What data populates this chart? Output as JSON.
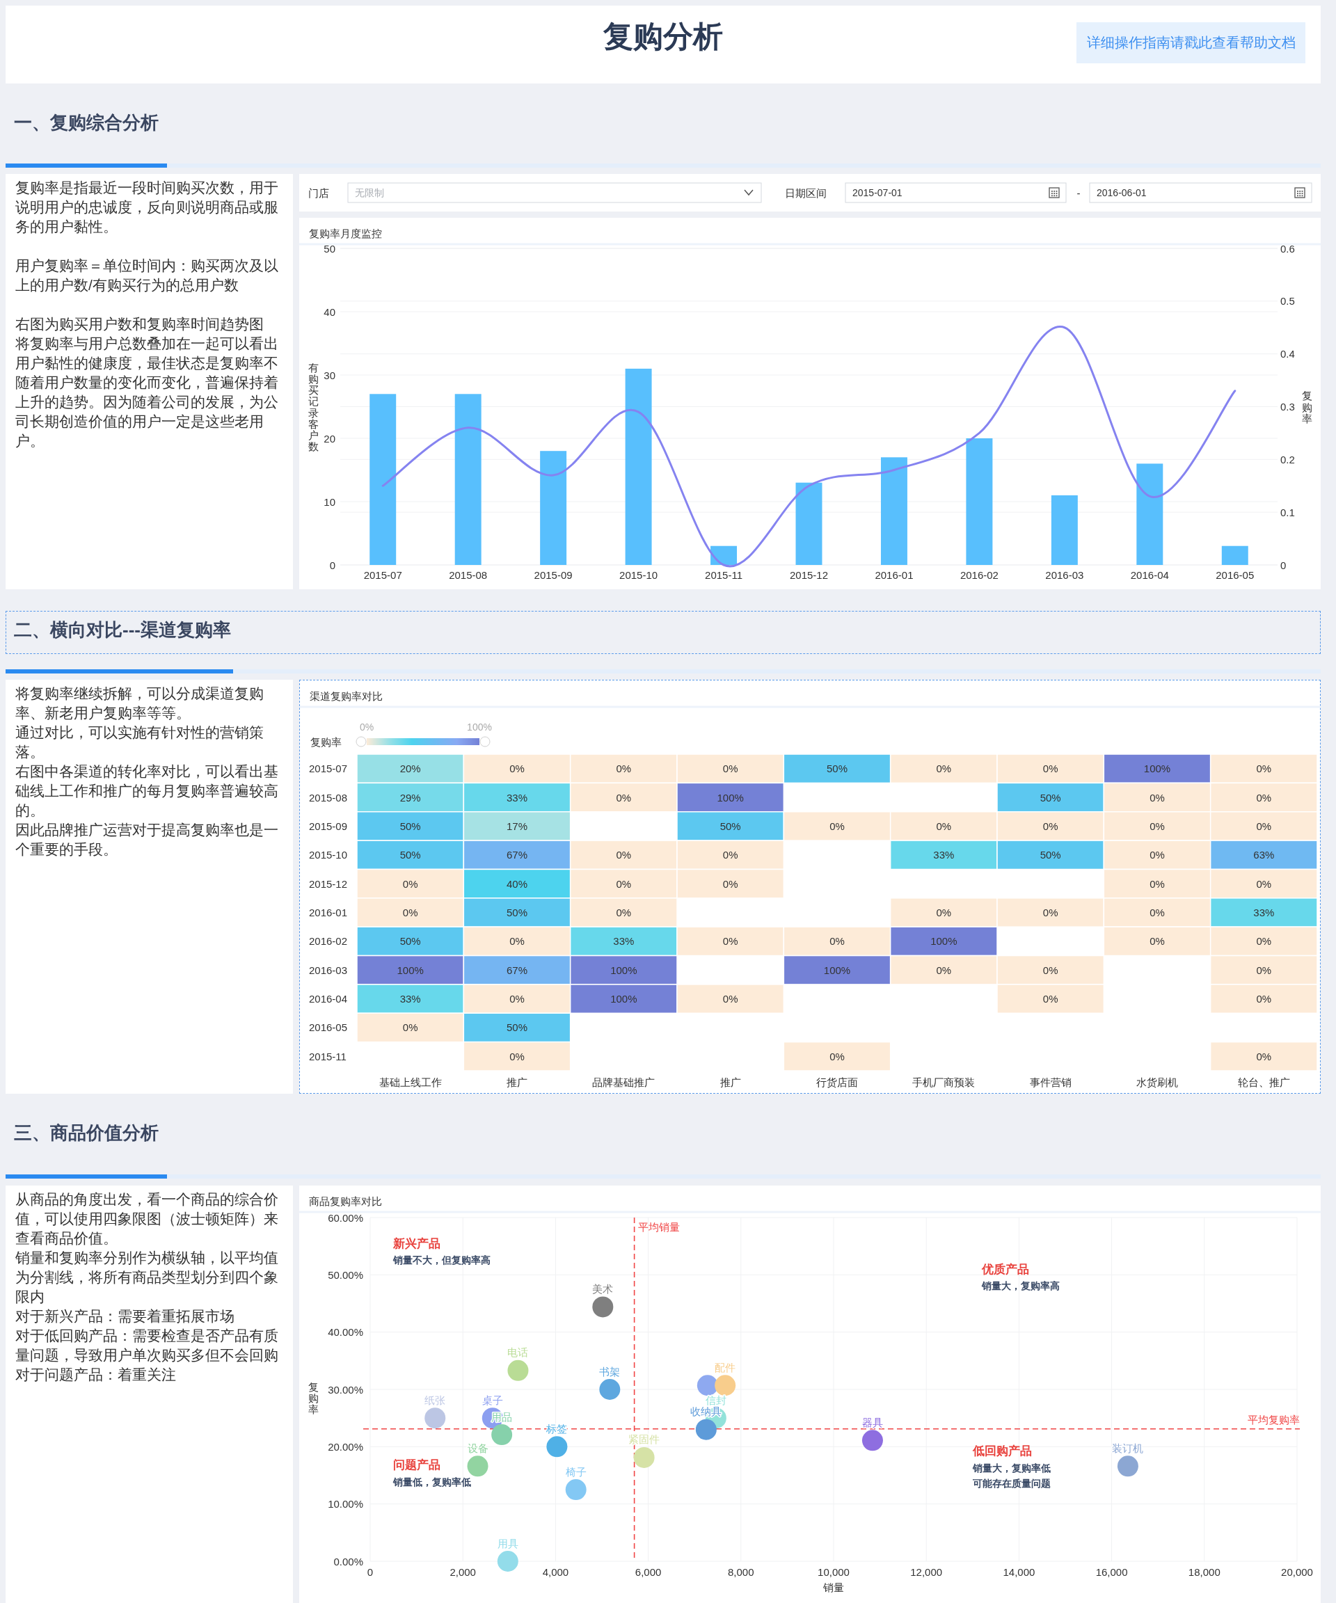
{
  "chart_data": [
    {
      "type": "other",
      "title": "复购分析",
      "annotations": [
        "详细操作指南请戳此查看帮助文档"
      ]
    },
    {
      "type": "other",
      "title": "一、复购综合分析"
    },
    {
      "type": "other",
      "annotations": [
        "复购率是指最近一段时间购买次数，用于说明用户的忠诚度，反向则说明商品或服务的用户黏性。",
        "用户复购率＝单位时间内：购买两次及以上的用户数/有购买行为的总用户数",
        "右图为购买用户数和复购率时间趋势图",
        "将复购率与用户总数叠加在一起可以看出用户黏性的健康度，最佳状态是复购率不随着用户数量的变化而变化，普遍保持着上升的趋势。因为随着公司的发展，为公司长期创造价值的用户一定是这些老用户。"
      ]
    },
    {
      "type": "other",
      "annotations": [
        "门店",
        "无限制",
        "日期区间",
        "2015-07-01",
        "-",
        "2016-06-01"
      ]
    },
    {
      "type": "bar",
      "title": "复购率月度监控",
      "categories": [
        "2015-07",
        "2015-08",
        "2015-09",
        "2015-10",
        "2015-11",
        "2015-12",
        "2016-01",
        "2016-02",
        "2016-03",
        "2016-04",
        "2016-05"
      ],
      "series": [
        {
          "type": "bar",
          "color": "#58bffd",
          "values": [
            27,
            27,
            18,
            31,
            3,
            13,
            17,
            20,
            11,
            16,
            3
          ]
        },
        {
          "type": "line",
          "axis": "y2",
          "color": "#8583f0",
          "values": [
            0.15,
            0.26,
            0.17,
            0.29,
            0,
            0.15,
            0.18,
            0.25,
            0.45,
            0.13,
            0.33
          ]
        }
      ],
      "ylabel": "有购买记录客户数",
      "y2label": "复购率",
      "ylim": [
        0,
        50
      ],
      "yticks": [
        0,
        10,
        20,
        30,
        40,
        50
      ],
      "y2lim": [
        0,
        0.6
      ],
      "y2ticks": [
        0,
        0.1,
        0.2,
        0.3,
        0.4,
        0.5,
        0.6
      ],
      "grid": "y"
    },
    {
      "type": "other",
      "title": "二、横向对比---渠道复购率"
    },
    {
      "type": "other",
      "annotations": [
        "将复购率继续拆解，可以分成渠道复购率、新老用户复购率等等。",
        "通过对比，可以实施有针对性的营销策落。",
        "右图中各渠道的转化率对比，可以看出基础线上工作和推广的每月复购率普遍较高的。",
        "因此品牌推广运营对于提高复购率也是一个重要的手段。"
      ]
    },
    {
      "type": "heatmap",
      "title": "渠道复购率对比",
      "categories": [
        "基础上线工作",
        "推广",
        "品牌基础推广",
        "推广",
        "行货店面",
        "手机厂商预装",
        "事件营销",
        "水货刷机",
        "轮台、推广"
      ],
      "y_categories": [
        "2015-07",
        "2015-08",
        "2015-09",
        "2015-10",
        "2015-12",
        "2016-01",
        "2016-02",
        "2016-03",
        "2016-04",
        "2016-05",
        "2015-11"
      ],
      "cells": [
        [
          20,
          0,
          0,
          0,
          50,
          0,
          0,
          100,
          0
        ],
        [
          29,
          33,
          0,
          100,
          null,
          null,
          50,
          0,
          0
        ],
        [
          50,
          17,
          null,
          50,
          0,
          0,
          0,
          0,
          0
        ],
        [
          50,
          67,
          0,
          0,
          null,
          33,
          50,
          0,
          63
        ],
        [
          0,
          40,
          0,
          0,
          null,
          null,
          null,
          0,
          0
        ],
        [
          0,
          50,
          0,
          null,
          null,
          0,
          0,
          0,
          33
        ],
        [
          50,
          0,
          33,
          0,
          0,
          100,
          null,
          0,
          0
        ],
        [
          100,
          67,
          100,
          null,
          100,
          0,
          0,
          null,
          0
        ],
        [
          33,
          0,
          100,
          0,
          null,
          null,
          0,
          null,
          0
        ],
        [
          0,
          50,
          null,
          null,
          null,
          null,
          null,
          null,
          null
        ],
        [
          null,
          0,
          null,
          null,
          0,
          null,
          null,
          null,
          0
        ]
      ],
      "cell_labels": [
        [
          "20%",
          "0%",
          "0%",
          "0%",
          "50%",
          "0%",
          "0%",
          "100%",
          "0%"
        ],
        [
          "29%",
          "33%",
          "0%",
          "100%",
          null,
          null,
          "50%",
          "0%",
          "0%"
        ],
        [
          "50%",
          "17%",
          null,
          "50%",
          "0%",
          "0%",
          "0%",
          "0%",
          "0%"
        ],
        [
          "50%",
          "67%",
          "0%",
          "0%",
          null,
          "33%",
          "50%",
          "0%",
          "63%"
        ],
        [
          "0%",
          "40%",
          "0%",
          "0%",
          null,
          null,
          null,
          "0%",
          "0%"
        ],
        [
          "0%",
          "50%",
          "0%",
          null,
          null,
          "0%",
          "0%",
          "0%",
          "33%"
        ],
        [
          "50%",
          "0%",
          "33%",
          "0%",
          "0%",
          "100%",
          null,
          "0%",
          "0%"
        ],
        [
          "100%",
          "67%",
          "100%",
          null,
          "100%",
          "0%",
          "0%",
          null,
          "0%"
        ],
        [
          "33%",
          "0%",
          "100%",
          "0%",
          null,
          null,
          "0%",
          null,
          "0%"
        ],
        [
          "0%",
          "50%",
          null,
          null,
          null,
          null,
          null,
          null,
          null
        ],
        [
          null,
          "0%",
          null,
          null,
          "0%",
          null,
          null,
          null,
          "0%"
        ]
      ],
      "clabel": "复购率",
      "clim": [
        0,
        100
      ],
      "cticks": [
        {
          "value": 0,
          "label": "0%"
        },
        {
          "value": 100,
          "label": "100%"
        }
      ],
      "colors": [
        "#fdebd8",
        "#97e0e6",
        "#4dd3ee",
        "#6bbcf2",
        "#88a9f3",
        "#7481d6"
      ]
    },
    {
      "type": "other",
      "title": "三、商品价值分析"
    },
    {
      "type": "other",
      "annotations": [
        "从商品的角度出发，看一个商品的综合价值，可以使用四象限图（波士顿矩阵）来查看商品价值。",
        "销量和复购率分别作为横纵轴，以平均值为分割线，将所有商品类型划分到四个象限内",
        "对于新兴产品：需要着重拓展市场",
        "对于低回购产品：需要检查是否产品有质量问题，导致用户单次购买多但不会回购",
        "对于问题产品：着重关注"
      ]
    },
    {
      "type": "scatter",
      "title": "商品复购率对比",
      "xlabel": "销量",
      "ylabel": "复购率",
      "xlim": [
        0,
        20000
      ],
      "xticks": [
        0,
        {
          "value": 2000,
          "label": "2,000"
        },
        {
          "value": 4000,
          "label": "4,000"
        },
        {
          "value": 6000,
          "label": "6,000"
        },
        {
          "value": 8000,
          "label": "8,000"
        },
        {
          "value": 10000,
          "label": "10,000"
        },
        {
          "value": 12000,
          "label": "12,000"
        },
        {
          "value": 14000,
          "label": "14,000"
        },
        {
          "value": 16000,
          "label": "16,000"
        },
        {
          "value": 18000,
          "label": "18,000"
        },
        {
          "value": 20000,
          "label": "20,000"
        }
      ],
      "ylim": [
        0,
        60
      ],
      "yticks": [
        {
          "value": 0,
          "label": "0.00%"
        },
        {
          "value": 10,
          "label": "10.00%"
        },
        {
          "value": 20,
          "label": "20.00%"
        },
        {
          "value": 30,
          "label": "30.00%"
        },
        {
          "value": 40,
          "label": "40.00%"
        },
        {
          "value": 50,
          "label": "50.00%"
        },
        {
          "value": 60,
          "label": "60.00%"
        }
      ],
      "grid": true,
      "marker": "circle",
      "series": [
        {
          "name": "美术",
          "color": "#7f7f7f",
          "x": [
            5020
          ],
          "values": [
            44.4
          ]
        },
        {
          "name": "电话",
          "color": "#b9dc95",
          "x": [
            3190
          ],
          "values": [
            33.3
          ]
        },
        {
          "name": "书架",
          "color": "#5ea7df",
          "x": [
            5170
          ],
          "values": [
            30.0
          ]
        },
        {
          "name": "纸张",
          "color": "#bcc6e4",
          "x": [
            1400
          ],
          "values": [
            25.0
          ]
        },
        {
          "name": "桌子",
          "color": "#8c9ff0",
          "x": [
            2640
          ],
          "values": [
            25.0
          ]
        },
        {
          "name": "用品",
          "color": "#86d1ab",
          "x": [
            2840
          ],
          "values": [
            22.1
          ]
        },
        {
          "name": "标签",
          "color": "#4fb0e6",
          "x": [
            4030
          ],
          "values": [
            20.0
          ]
        },
        {
          "name": "设备",
          "color": "#92d4a1",
          "x": [
            2320
          ],
          "values": [
            16.6
          ]
        },
        {
          "name": "椅子",
          "color": "#83c8f4",
          "x": [
            4440
          ],
          "values": [
            12.5
          ]
        },
        {
          "name": "用具",
          "color": "#93dcea",
          "x": [
            2970
          ],
          "values": [
            0
          ]
        },
        {
          "color": "#8ea9f0",
          "x": [
            7280
          ],
          "values": [
            30.7
          ]
        },
        {
          "name": "配件",
          "color": "#f8cd8c",
          "x": [
            7660
          ],
          "values": [
            30.7
          ]
        },
        {
          "name": "信封",
          "color": "#93e2da",
          "x": [
            7460
          ],
          "values": [
            25.0
          ]
        },
        {
          "name": "收纳具",
          "color": "#5d9bd9",
          "x": [
            7250
          ],
          "values": [
            23.0
          ]
        },
        {
          "name": "紧固件",
          "color": "#d6e2a6",
          "x": [
            5910
          ],
          "values": [
            18.1
          ]
        },
        {
          "name": "器具",
          "color": "#8e6ee0",
          "x": [
            10840
          ],
          "values": [
            21.1
          ]
        },
        {
          "name": "装订机",
          "color": "#8ca7d3",
          "x": [
            16350
          ],
          "values": [
            16.6
          ]
        }
      ],
      "ref_lines": [
        {
          "axis": "x",
          "value": 5700,
          "label": "平均销量",
          "color": "#f04646",
          "line_style": "dashed"
        },
        {
          "axis": "y",
          "value": 23.1,
          "label": "平均复购率",
          "color": "#f04646",
          "line_style": "dashed"
        }
      ],
      "annotations": [
        "新兴产品",
        "销量不大，但复购率高",
        "优质产品",
        "销量大，复购率高",
        "问题产品",
        "销量低，复购率低",
        "低回购产品",
        "销量大，复购率低",
        "可能存在质量问题"
      ]
    }
  ]
}
